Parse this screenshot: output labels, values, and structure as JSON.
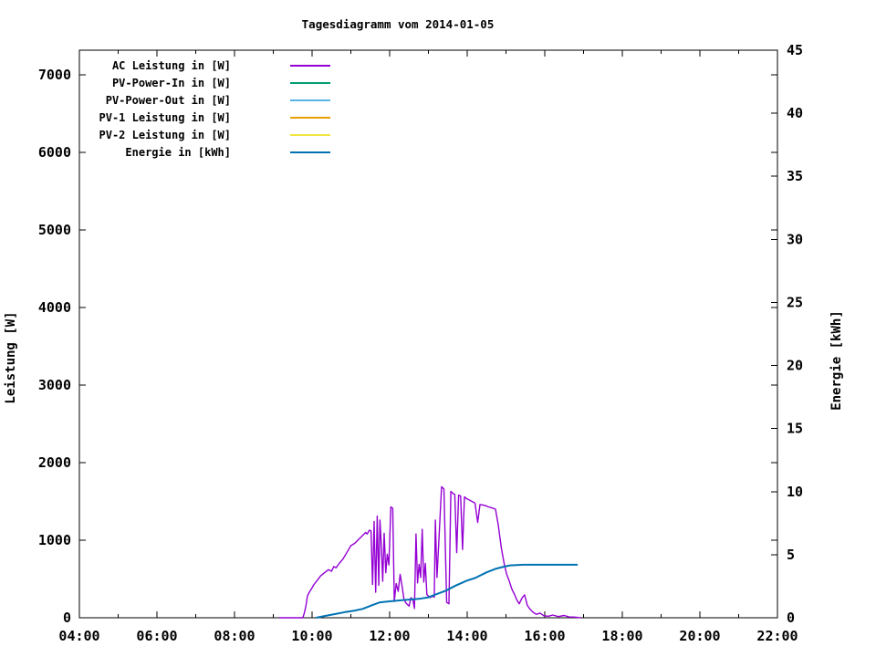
{
  "title": "Tagesdiagramm vom 2014-01-05",
  "chart_data": {
    "type": "line",
    "title": "Tagesdiagramm vom 2014-01-05",
    "ylabel": "Leistung [W]",
    "y2label": "Energie [kWh]",
    "grid": false,
    "legend_position": "top-left-inside",
    "x_range_hours": [
      4,
      22
    ],
    "x_major_ticks": [
      {
        "h": 4,
        "label": "04:00"
      },
      {
        "h": 6,
        "label": "06:00"
      },
      {
        "h": 8,
        "label": "08:00"
      },
      {
        "h": 10,
        "label": "10:00"
      },
      {
        "h": 12,
        "label": "12:00"
      },
      {
        "h": 14,
        "label": "14:00"
      },
      {
        "h": 16,
        "label": "16:00"
      },
      {
        "h": 18,
        "label": "18:00"
      },
      {
        "h": 20,
        "label": "20:00"
      },
      {
        "h": 22,
        "label": "22:00"
      }
    ],
    "x_minor_tick_hours": [
      5,
      7,
      9,
      11,
      13,
      15,
      17,
      19,
      21
    ],
    "y1_range": [
      0,
      7320
    ],
    "y1_ticks": [
      0,
      1000,
      2000,
      3000,
      4000,
      5000,
      6000,
      7000
    ],
    "y2_range": [
      0,
      45
    ],
    "y2_ticks": [
      0,
      5,
      10,
      15,
      20,
      25,
      30,
      35,
      40,
      45
    ],
    "series": [
      {
        "name": "AC Leistung in [W]",
        "color": "#9400D3",
        "axis": "y1",
        "width": 1.4,
        "points": [
          [
            9.15,
            0
          ],
          [
            9.4,
            0
          ],
          [
            9.6,
            0
          ],
          [
            9.76,
            0
          ],
          [
            9.8,
            60
          ],
          [
            9.84,
            150
          ],
          [
            9.88,
            280
          ],
          [
            9.93,
            330
          ],
          [
            9.98,
            370
          ],
          [
            10.05,
            430
          ],
          [
            10.13,
            480
          ],
          [
            10.22,
            540
          ],
          [
            10.32,
            580
          ],
          [
            10.42,
            620
          ],
          [
            10.5,
            600
          ],
          [
            10.56,
            660
          ],
          [
            10.62,
            645
          ],
          [
            10.7,
            700
          ],
          [
            10.8,
            760
          ],
          [
            10.9,
            845
          ],
          [
            11.0,
            930
          ],
          [
            11.1,
            960
          ],
          [
            11.2,
            1010
          ],
          [
            11.3,
            1060
          ],
          [
            11.38,
            1100
          ],
          [
            11.42,
            1080
          ],
          [
            11.48,
            1130
          ],
          [
            11.52,
            1120
          ],
          [
            11.56,
            430
          ],
          [
            11.6,
            1240
          ],
          [
            11.64,
            330
          ],
          [
            11.68,
            1310
          ],
          [
            11.72,
            420
          ],
          [
            11.75,
            1260
          ],
          [
            11.79,
            880
          ],
          [
            11.82,
            470
          ],
          [
            11.86,
            1090
          ],
          [
            11.9,
            580
          ],
          [
            11.94,
            820
          ],
          [
            11.98,
            680
          ],
          [
            12.03,
            1430
          ],
          [
            12.08,
            1410
          ],
          [
            12.12,
            210
          ],
          [
            12.17,
            440
          ],
          [
            12.22,
            340
          ],
          [
            12.27,
            560
          ],
          [
            12.32,
            410
          ],
          [
            12.37,
            240
          ],
          [
            12.42,
            190
          ],
          [
            12.5,
            150
          ],
          [
            12.55,
            260
          ],
          [
            12.6,
            230
          ],
          [
            12.64,
            120
          ],
          [
            12.68,
            1080
          ],
          [
            12.72,
            450
          ],
          [
            12.76,
            690
          ],
          [
            12.8,
            520
          ],
          [
            12.84,
            1140
          ],
          [
            12.88,
            460
          ],
          [
            12.92,
            700
          ],
          [
            12.96,
            300
          ],
          [
            13.0,
            280
          ],
          [
            13.05,
            260
          ],
          [
            13.1,
            280
          ],
          [
            13.15,
            265
          ],
          [
            13.18,
            1260
          ],
          [
            13.22,
            520
          ],
          [
            13.28,
            1100
          ],
          [
            13.34,
            1690
          ],
          [
            13.4,
            1660
          ],
          [
            13.47,
            200
          ],
          [
            13.53,
            180
          ],
          [
            13.58,
            1630
          ],
          [
            13.64,
            1600
          ],
          [
            13.68,
            1590
          ],
          [
            13.73,
            840
          ],
          [
            13.78,
            1580
          ],
          [
            13.83,
            1570
          ],
          [
            13.88,
            880
          ],
          [
            13.93,
            1560
          ],
          [
            13.97,
            1540
          ],
          [
            14.05,
            1520
          ],
          [
            14.12,
            1500
          ],
          [
            14.2,
            1480
          ],
          [
            14.27,
            1230
          ],
          [
            14.33,
            1460
          ],
          [
            14.45,
            1450
          ],
          [
            14.55,
            1430
          ],
          [
            14.62,
            1420
          ],
          [
            14.73,
            1400
          ],
          [
            14.8,
            1200
          ],
          [
            14.88,
            900
          ],
          [
            14.96,
            680
          ],
          [
            15.02,
            560
          ],
          [
            15.08,
            480
          ],
          [
            15.15,
            370
          ],
          [
            15.22,
            300
          ],
          [
            15.28,
            230
          ],
          [
            15.34,
            180
          ],
          [
            15.42,
            260
          ],
          [
            15.48,
            295
          ],
          [
            15.55,
            160
          ],
          [
            15.62,
            110
          ],
          [
            15.7,
            70
          ],
          [
            15.78,
            45
          ],
          [
            15.88,
            60
          ],
          [
            15.98,
            25
          ],
          [
            16.1,
            20
          ],
          [
            16.2,
            35
          ],
          [
            16.35,
            15
          ],
          [
            16.5,
            30
          ],
          [
            16.62,
            10
          ],
          [
            16.78,
            8
          ],
          [
            16.93,
            0
          ]
        ]
      },
      {
        "name": "PV-Power-In in [W]",
        "color": "#009E73",
        "axis": "y1",
        "width": 1.4,
        "points": []
      },
      {
        "name": "PV-Power-Out in [W]",
        "color": "#56B4E9",
        "axis": "y1",
        "width": 1.4,
        "points": []
      },
      {
        "name": "PV-1 Leistung in [W]",
        "color": "#E69F00",
        "axis": "y1",
        "width": 1.4,
        "points": []
      },
      {
        "name": "PV-2 Leistung in [W]",
        "color": "#F0E442",
        "axis": "y1",
        "width": 1.4,
        "points": []
      },
      {
        "name": "Energie in [kWh]",
        "color": "#0072B2",
        "axis": "y2",
        "width": 2,
        "points": [
          [
            10.1,
            0
          ],
          [
            10.35,
            0.15
          ],
          [
            10.6,
            0.3
          ],
          [
            10.85,
            0.45
          ],
          [
            11.1,
            0.57
          ],
          [
            11.3,
            0.7
          ],
          [
            11.55,
            1.0
          ],
          [
            11.75,
            1.22
          ],
          [
            12.0,
            1.3
          ],
          [
            12.35,
            1.4
          ],
          [
            12.75,
            1.5
          ],
          [
            13.0,
            1.62
          ],
          [
            13.15,
            1.8
          ],
          [
            13.45,
            2.15
          ],
          [
            13.7,
            2.55
          ],
          [
            14.0,
            2.95
          ],
          [
            14.2,
            3.15
          ],
          [
            14.5,
            3.6
          ],
          [
            14.75,
            3.9
          ],
          [
            14.95,
            4.05
          ],
          [
            15.1,
            4.15
          ],
          [
            15.45,
            4.2
          ],
          [
            16.85,
            4.2
          ]
        ]
      }
    ]
  }
}
